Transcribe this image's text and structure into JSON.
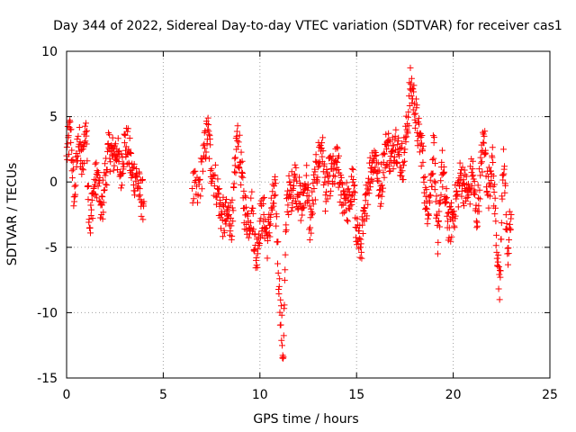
{
  "chart_data": {
    "type": "scatter",
    "title": "Day 344 of 2022, Sidereal Day-to-day VTEC variation (SDTVAR) for receiver cas1",
    "xlabel": "GPS time / hours",
    "ylabel": "SDTVAR / TECUs",
    "xlim": [
      0,
      25
    ],
    "ylim": [
      -15,
      10
    ],
    "xticks": [
      0,
      5,
      10,
      15,
      20,
      25
    ],
    "yticks": [
      -15,
      -10,
      -5,
      0,
      5,
      10
    ],
    "grid": true,
    "marker": "+",
    "color": "#ff0000",
    "series": [
      {
        "name": "SDTVAR",
        "segments": [
          {
            "x": [
              0.0,
              0.2,
              0.4,
              0.6,
              0.8,
              1.0,
              1.2,
              1.4,
              1.6,
              1.8,
              2.0,
              2.2,
              2.4,
              2.6,
              2.8,
              3.0,
              3.2,
              3.4,
              3.6,
              3.8,
              4.0
            ],
            "y": [
              2.0,
              4.0,
              -1.5,
              3.5,
              1.0,
              4.5,
              -3.5,
              -0.5,
              0.5,
              -2.5,
              0.5,
              2.5,
              2.0,
              2.5,
              0.5,
              3.0,
              2.5,
              0.5,
              0.5,
              -1.0,
              -1.5
            ]
          },
          {
            "x": [
              6.5,
              6.8,
              7.1,
              7.3,
              7.5,
              7.8,
              8.0,
              8.2,
              8.4,
              8.6,
              8.8,
              9.0,
              9.2,
              9.4,
              9.6,
              9.8,
              10.0,
              10.2,
              10.4,
              10.6,
              10.8,
              11.0,
              11.2,
              11.4,
              11.6,
              11.8,
              12.0,
              12.2,
              12.4,
              12.6,
              12.8,
              13.0,
              13.2,
              13.4,
              13.6,
              13.8,
              14.0,
              14.2,
              14.4,
              14.6,
              14.8,
              15.0,
              15.2,
              15.4,
              15.6,
              15.8,
              16.0,
              16.2,
              16.4,
              16.6,
              16.8,
              17.0,
              17.2,
              17.4,
              17.6,
              17.8,
              18.0,
              18.2,
              18.4,
              18.6,
              18.8,
              19.0,
              19.2,
              19.4,
              19.6,
              19.8,
              20.0,
              20.2,
              20.4,
              20.6,
              20.8,
              21.0,
              21.2,
              21.4,
              21.6,
              21.8,
              22.0,
              22.2,
              22.4,
              22.6,
              22.8,
              23.0
            ],
            "y": [
              -0.5,
              -1.0,
              2.0,
              4.0,
              1.0,
              -0.5,
              -2.5,
              -3.0,
              -2.5,
              -3.0,
              3.5,
              1.5,
              -2.0,
              -3.0,
              -2.0,
              -6.0,
              -3.0,
              -2.5,
              -4.5,
              -2.0,
              -1.0,
              -8.0,
              -13.5,
              -1.0,
              -1.0,
              0.5,
              -1.0,
              -2.0,
              0.5,
              -3.5,
              -0.5,
              1.5,
              3.0,
              -1.0,
              0.5,
              0.5,
              1.5,
              -1.0,
              -1.0,
              -2.0,
              0.0,
              -3.5,
              -5.0,
              -3.0,
              0.0,
              1.5,
              2.0,
              -1.0,
              1.5,
              3.0,
              1.5,
              3.5,
              2.0,
              1.5,
              4.0,
              7.5,
              6.0,
              3.5,
              2.5,
              -2.0,
              -1.0,
              3.0,
              -5.5,
              1.5,
              -1.5,
              -3.5,
              -2.5,
              -1.0,
              0.5,
              -0.5,
              -1.0,
              1.0,
              -3.0,
              0.5,
              3.5,
              -1.0,
              2.0,
              -3.0,
              -9.0,
              2.5,
              -5.5,
              -2.5
            ]
          }
        ]
      }
    ]
  }
}
